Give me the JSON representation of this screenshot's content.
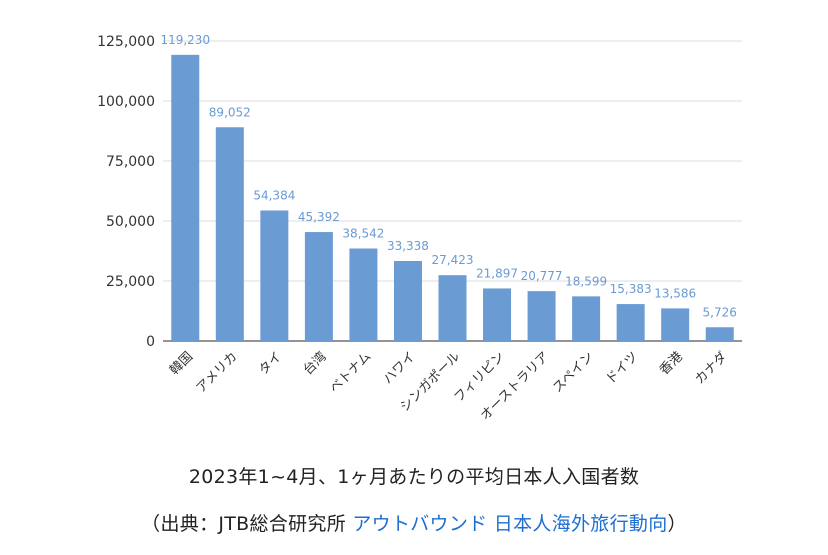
{
  "chart_data": {
    "type": "bar",
    "title": "",
    "xlabel": "",
    "ylabel": "",
    "ylim": [
      0,
      125000
    ],
    "yticks": [
      0,
      25000,
      50000,
      75000,
      100000,
      125000
    ],
    "ytick_labels": [
      "0",
      "25,000",
      "50,000",
      "75,000",
      "100,000",
      "125,000"
    ],
    "grid": true,
    "categories": [
      "韓国",
      "アメリカ",
      "タイ",
      "台湾",
      "ベトナム",
      "ハワイ",
      "シンガポール",
      "フィリピン",
      "オーストラリア",
      "スペイン",
      "ドイツ",
      "香港",
      "カナダ"
    ],
    "values": [
      119230,
      89052,
      54384,
      45392,
      38542,
      33338,
      27423,
      21897,
      20777,
      18599,
      15383,
      13586,
      5726
    ],
    "value_labels": [
      "119,230",
      "89,052",
      "54,384",
      "45,392",
      "38,542",
      "33,338",
      "27,423",
      "21,897",
      "20,777",
      "18,599",
      "15,383",
      "13,586",
      "5,726"
    ],
    "bar_color": "#6a9bd3",
    "label_color": "#6a9bd3",
    "grid_color": "#dddddd"
  },
  "caption": {
    "title": "2023年1~4月、1ヶ月あたりの平均日本人入国者数",
    "source_prefix": "（出典：JTB総合研究所 ",
    "source_link": "アウトバウンド 日本人海外旅行動向",
    "source_suffix": "）",
    "link_color": "#1c6fd1"
  }
}
